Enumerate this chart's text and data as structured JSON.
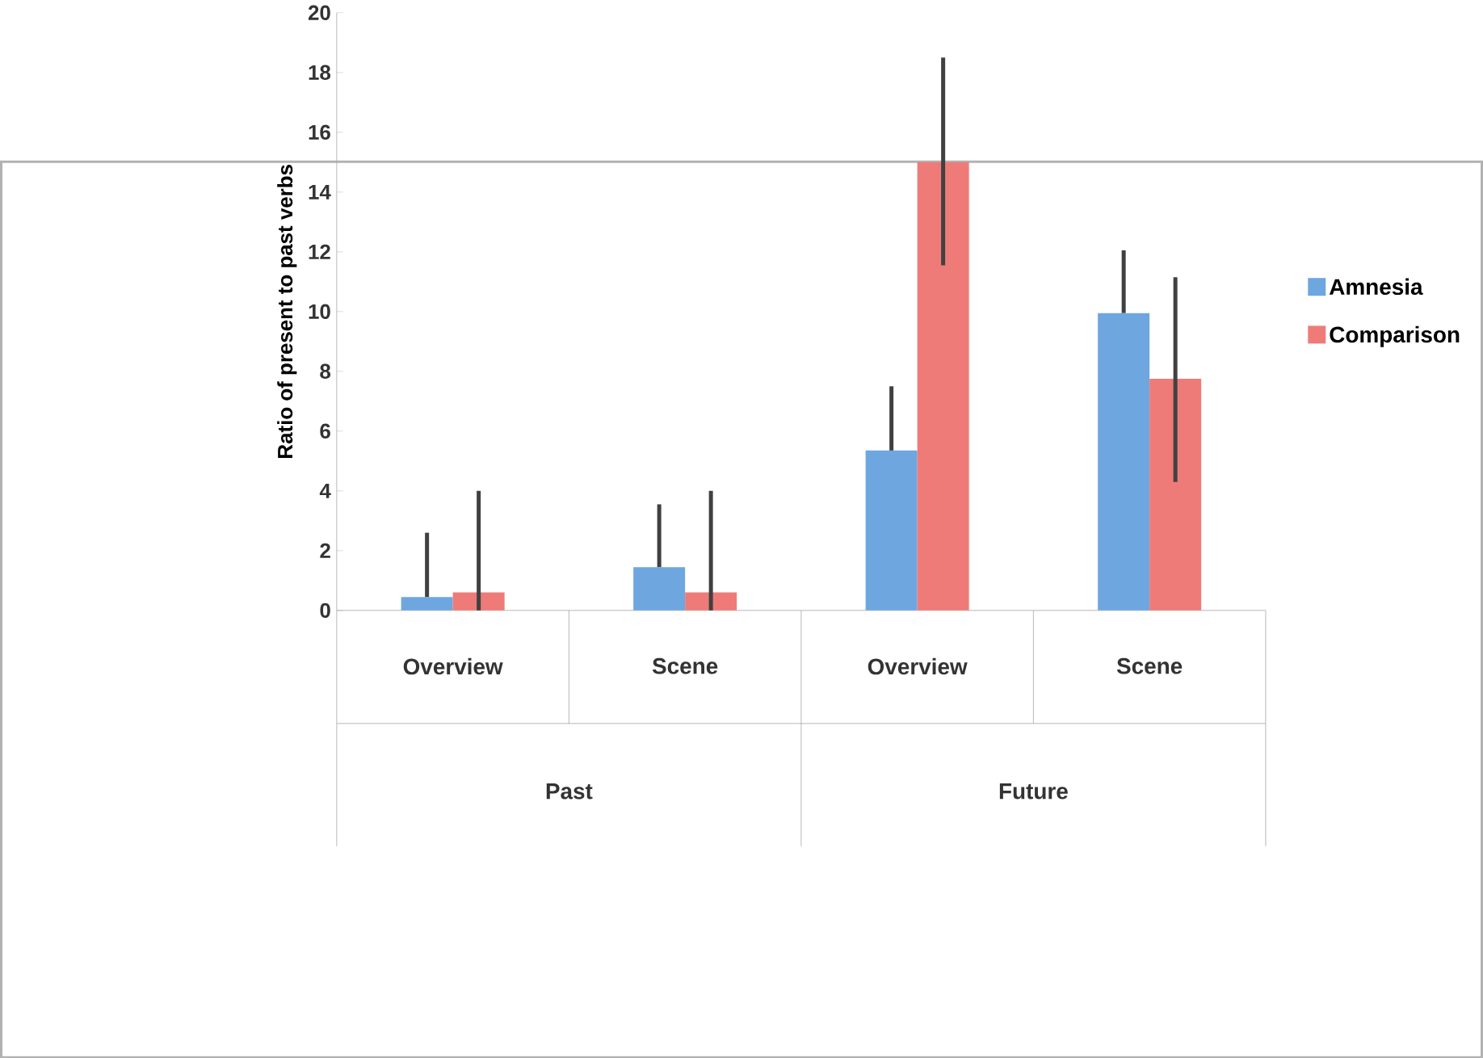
{
  "chart_data": {
    "type": "bar",
    "ylabel": "Ratio of present to past verbs",
    "categories": [
      "Overview",
      "Scene",
      "Overview",
      "Scene"
    ],
    "annotations": [
      "Past",
      "Future"
    ],
    "series": [
      {
        "name": "Amnesia",
        "color": "#6ea6e0",
        "values": [
          0.45,
          1.45,
          5.35,
          9.95
        ],
        "errors": [
          [
            0.45,
            2.6
          ],
          [
            1.45,
            3.55
          ],
          [
            5.35,
            7.5
          ],
          [
            9.95,
            12.05
          ]
        ]
      },
      {
        "name": "Comparison",
        "color": "#ee7b78",
        "values": [
          0.6,
          0.6,
          15.0,
          7.75
        ],
        "errors": [
          [
            0,
            4.0
          ],
          [
            0,
            4.0
          ],
          [
            11.55,
            18.5
          ],
          [
            4.3,
            11.15
          ]
        ]
      }
    ],
    "ylim": [
      0,
      20
    ],
    "yticks": [
      0,
      2,
      4,
      6,
      8,
      10,
      12,
      14,
      16,
      18,
      20
    ],
    "grid": false,
    "legend": "right"
  }
}
